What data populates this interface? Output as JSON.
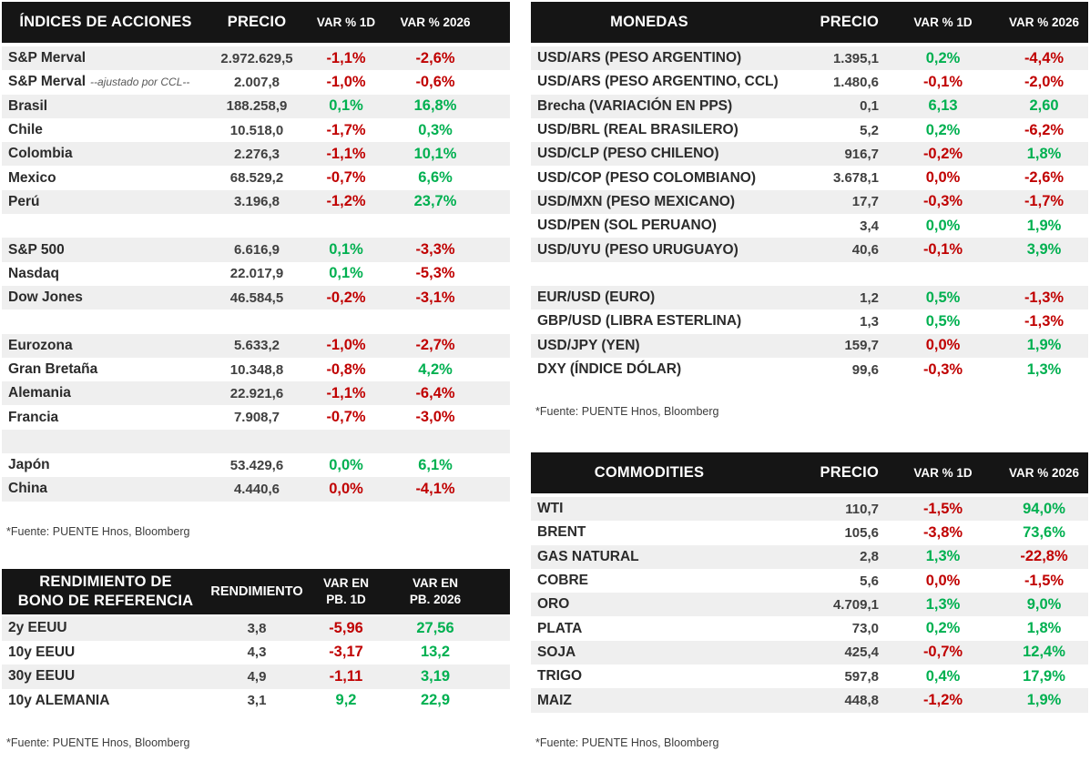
{
  "colors": {
    "header_bg": "#151515",
    "header_text": "#ffffff",
    "row_stripe": "#efefef",
    "positive": "#00B050",
    "negative": "#C00000"
  },
  "footnote": "*Fuente: PUENTE Hnos, Bloomberg",
  "tables": {
    "indices": {
      "title": "ÍNDICES DE ACCIONES",
      "col_price": "PRECIO",
      "col_1d": "VAR % 1D",
      "col_y": "VAR % 2026",
      "rows": [
        {
          "name": "S&P Merval",
          "price": "2.972.629,5",
          "d1": "-1,1%",
          "d1_t": "neg",
          "y": "-2,6%",
          "y_t": "neg"
        },
        {
          "name": "S&P Merval",
          "note": "--ajustado por CCL--",
          "price": "2.007,8",
          "d1": "-1,0%",
          "d1_t": "neg",
          "y": "-0,6%",
          "y_t": "neg"
        },
        {
          "name": "Brasil",
          "price": "188.258,9",
          "d1": "0,1%",
          "d1_t": "pos",
          "y": "16,8%",
          "y_t": "pos"
        },
        {
          "name": "Chile",
          "price": "10.518,0",
          "d1": "-1,7%",
          "d1_t": "neg",
          "y": "0,3%",
          "y_t": "pos"
        },
        {
          "name": "Colombia",
          "price": "2.276,3",
          "d1": "-1,1%",
          "d1_t": "neg",
          "y": "10,1%",
          "y_t": "pos"
        },
        {
          "name": "Mexico",
          "price": "68.529,2",
          "d1": "-0,7%",
          "d1_t": "neg",
          "y": "6,6%",
          "y_t": "pos"
        },
        {
          "name": "Perú",
          "price": "3.196,8",
          "d1": "-1,2%",
          "d1_t": "neg",
          "y": "23,7%",
          "y_t": "pos"
        },
        {
          "blank": true
        },
        {
          "name": "S&P 500",
          "price": "6.616,9",
          "d1": "0,1%",
          "d1_t": "pos",
          "y": "-3,3%",
          "y_t": "neg"
        },
        {
          "name": "Nasdaq",
          "price": "22.017,9",
          "d1": "0,1%",
          "d1_t": "pos",
          "y": "-5,3%",
          "y_t": "neg"
        },
        {
          "name": "Dow Jones",
          "price": "46.584,5",
          "d1": "-0,2%",
          "d1_t": "neg",
          "y": "-3,1%",
          "y_t": "neg"
        },
        {
          "blank": true
        },
        {
          "name": "Eurozona",
          "price": "5.633,2",
          "d1": "-1,0%",
          "d1_t": "neg",
          "y": "-2,7%",
          "y_t": "neg"
        },
        {
          "name": "Gran Bretaña",
          "price": "10.348,8",
          "d1": "-0,8%",
          "d1_t": "neg",
          "y": "4,2%",
          "y_t": "pos"
        },
        {
          "name": "Alemania",
          "price": "22.921,6",
          "d1": "-1,1%",
          "d1_t": "neg",
          "y": "-6,4%",
          "y_t": "neg"
        },
        {
          "name": "Francia",
          "price": "7.908,7",
          "d1": "-0,7%",
          "d1_t": "neg",
          "y": "-3,0%",
          "y_t": "neg"
        },
        {
          "blank": true
        },
        {
          "name": "Japón",
          "price": "53.429,6",
          "d1": "0,0%",
          "d1_t": "pos",
          "y": "6,1%",
          "y_t": "pos"
        },
        {
          "name": "China",
          "price": "4.440,6",
          "d1": "0,0%",
          "d1_t": "neg",
          "y": "-4,1%",
          "y_t": "neg"
        }
      ]
    },
    "monedas": {
      "title": "MONEDAS",
      "col_price": "PRECIO",
      "col_1d": "VAR % 1D",
      "col_y": "VAR % 2026",
      "rows": [
        {
          "name": "USD/ARS (PESO ARGENTINO)",
          "price": "1.395,1",
          "d1": "0,2%",
          "d1_t": "pos",
          "y": "-4,4%",
          "y_t": "neg"
        },
        {
          "name": "USD/ARS (PESO ARGENTINO, CCL)",
          "price": "1.480,6",
          "d1": "-0,1%",
          "d1_t": "neg",
          "y": "-2,0%",
          "y_t": "neg"
        },
        {
          "name": "Brecha (VARIACIÓN EN PPS)",
          "price": "0,1",
          "d1": "6,13",
          "d1_t": "pos",
          "y": "2,60",
          "y_t": "pos"
        },
        {
          "name": "USD/BRL (REAL BRASILERO)",
          "price": "5,2",
          "d1": "0,2%",
          "d1_t": "pos",
          "y": "-6,2%",
          "y_t": "neg"
        },
        {
          "name": "USD/CLP (PESO CHILENO)",
          "price": "916,7",
          "d1": "-0,2%",
          "d1_t": "neg",
          "y": "1,8%",
          "y_t": "pos"
        },
        {
          "name": "USD/COP (PESO COLOMBIANO)",
          "price": "3.678,1",
          "d1": "0,0%",
          "d1_t": "neg",
          "y": "-2,6%",
          "y_t": "neg"
        },
        {
          "name": "USD/MXN (PESO MEXICANO)",
          "price": "17,7",
          "d1": "-0,3%",
          "d1_t": "neg",
          "y": "-1,7%",
          "y_t": "neg"
        },
        {
          "name": "USD/PEN (SOL PERUANO)",
          "price": "3,4",
          "d1": "0,0%",
          "d1_t": "pos",
          "y": "1,9%",
          "y_t": "pos"
        },
        {
          "name": "USD/UYU (PESO URUGUAYO)",
          "price": "40,6",
          "d1": "-0,1%",
          "d1_t": "neg",
          "y": "3,9%",
          "y_t": "pos"
        },
        {
          "blank": true
        },
        {
          "name": "EUR/USD (EURO)",
          "price": "1,2",
          "d1": "0,5%",
          "d1_t": "pos",
          "y": "-1,3%",
          "y_t": "neg"
        },
        {
          "name": "GBP/USD (LIBRA ESTERLINA)",
          "price": "1,3",
          "d1": "0,5%",
          "d1_t": "pos",
          "y": "-1,3%",
          "y_t": "neg"
        },
        {
          "name": "USD/JPY (YEN)",
          "price": "159,7",
          "d1": "0,0%",
          "d1_t": "neg",
          "y": "1,9%",
          "y_t": "pos"
        },
        {
          "name": "DXY (ÍNDICE DÓLAR)",
          "price": "99,6",
          "d1": "-0,3%",
          "d1_t": "neg",
          "y": "1,3%",
          "y_t": "pos"
        }
      ]
    },
    "bonos": {
      "title_line1": "RENDIMIENTO DE",
      "title_line2": "BONO DE REFERENCIA",
      "col_price": "RENDIMIENTO",
      "col_1d_line1": "VAR EN",
      "col_1d_line2": "PB. 1D",
      "col_y_line1": "VAR EN",
      "col_y_line2": "PB. 2026",
      "rows": [
        {
          "name": "2y EEUU",
          "price": "3,8",
          "d1": "-5,96",
          "d1_t": "neg",
          "y": "27,56",
          "y_t": "pos"
        },
        {
          "name": "10y EEUU",
          "price": "4,3",
          "d1": "-3,17",
          "d1_t": "neg",
          "y": "13,2",
          "y_t": "pos"
        },
        {
          "name": "30y EEUU",
          "price": "4,9",
          "d1": "-1,11",
          "d1_t": "neg",
          "y": "3,19",
          "y_t": "pos"
        },
        {
          "name": "10y ALEMANIA",
          "price": "3,1",
          "d1": "9,2",
          "d1_t": "pos",
          "y": "22,9",
          "y_t": "pos"
        }
      ]
    },
    "commodities": {
      "title": "COMMODITIES",
      "col_price": "PRECIO",
      "col_1d": "VAR % 1D",
      "col_y": "VAR % 2026",
      "rows": [
        {
          "name": "WTI",
          "price": "110,7",
          "d1": "-1,5%",
          "d1_t": "neg",
          "y": "94,0%",
          "y_t": "pos"
        },
        {
          "name": "BRENT",
          "price": "105,6",
          "d1": "-3,8%",
          "d1_t": "neg",
          "y": "73,6%",
          "y_t": "pos"
        },
        {
          "name": "GAS NATURAL",
          "price": "2,8",
          "d1": "1,3%",
          "d1_t": "pos",
          "y": "-22,8%",
          "y_t": "neg"
        },
        {
          "name": "COBRE",
          "price": "5,6",
          "d1": "0,0%",
          "d1_t": "neg",
          "y": "-1,5%",
          "y_t": "neg"
        },
        {
          "name": "ORO",
          "price": "4.709,1",
          "d1": "1,3%",
          "d1_t": "pos",
          "y": "9,0%",
          "y_t": "pos"
        },
        {
          "name": "PLATA",
          "price": "73,0",
          "d1": "0,2%",
          "d1_t": "pos",
          "y": "1,8%",
          "y_t": "pos"
        },
        {
          "name": "SOJA",
          "price": "425,4",
          "d1": "-0,7%",
          "d1_t": "neg",
          "y": "12,4%",
          "y_t": "pos"
        },
        {
          "name": "TRIGO",
          "price": "597,8",
          "d1": "0,4%",
          "d1_t": "pos",
          "y": "17,9%",
          "y_t": "pos"
        },
        {
          "name": "MAIZ",
          "price": "448,8",
          "d1": "-1,2%",
          "d1_t": "neg",
          "y": "1,9%",
          "y_t": "pos"
        }
      ]
    }
  }
}
